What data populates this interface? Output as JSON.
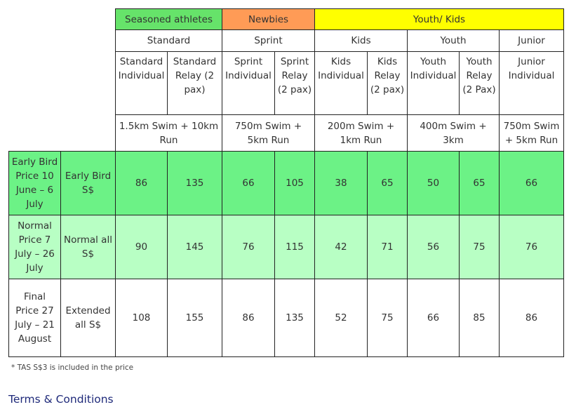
{
  "groups": {
    "seasoned": "Seasoned athletes",
    "newbies": "Newbies",
    "youth_kids": "Youth/ Kids"
  },
  "categories": {
    "standard": "Standard",
    "sprint": "Sprint",
    "kids": "Kids",
    "youth": "Youth",
    "junior": "Junior"
  },
  "columns": [
    "Standard Individual",
    "Standard Relay (2 pax)",
    "Sprint Individual",
    "Sprint Relay (2 pax)",
    "Kids Individual",
    "Kids Relay (2 pax)",
    "Youth Individual",
    "Youth Relay (2 Pax)",
    "Junior Individual"
  ],
  "distances": {
    "standard": "1.5km Swim + 10km Run",
    "sprint": "750m Swim + 5km Run",
    "kids": "200m Swim + 1km Run",
    "youth": "400m Swim + 3km",
    "junior": "750m Swim + 5km Run"
  },
  "rows": [
    {
      "period": "Early Bird Price 10 June – 6 July",
      "label": "Early Bird S$",
      "prices": [
        "86",
        "135",
        "66",
        "105",
        "38",
        "65",
        "50",
        "65",
        "66"
      ]
    },
    {
      "period": "Normal Price 7 July – 26 July",
      "label": "Normal all S$",
      "prices": [
        "90",
        "145",
        "76",
        "115",
        "42",
        "71",
        "56",
        "75",
        "76"
      ]
    },
    {
      "period": "Final Price 27 July – 21 August",
      "label": "Extended all S$",
      "prices": [
        "108",
        "155",
        "86",
        "135",
        "52",
        "75",
        "66",
        "85",
        "86"
      ]
    }
  ],
  "footnote": "* TAS S$3 is included in the price",
  "terms_link": "Terms & Conditions",
  "colors": {
    "seasoned_header": "#66e36a",
    "newbies_header": "#ff9b56",
    "youth_header": "#ffff00",
    "early_row": "#6cf286",
    "normal_row": "#b8ffc4",
    "final_row": "#ffffff",
    "link": "#1f2a7a"
  }
}
